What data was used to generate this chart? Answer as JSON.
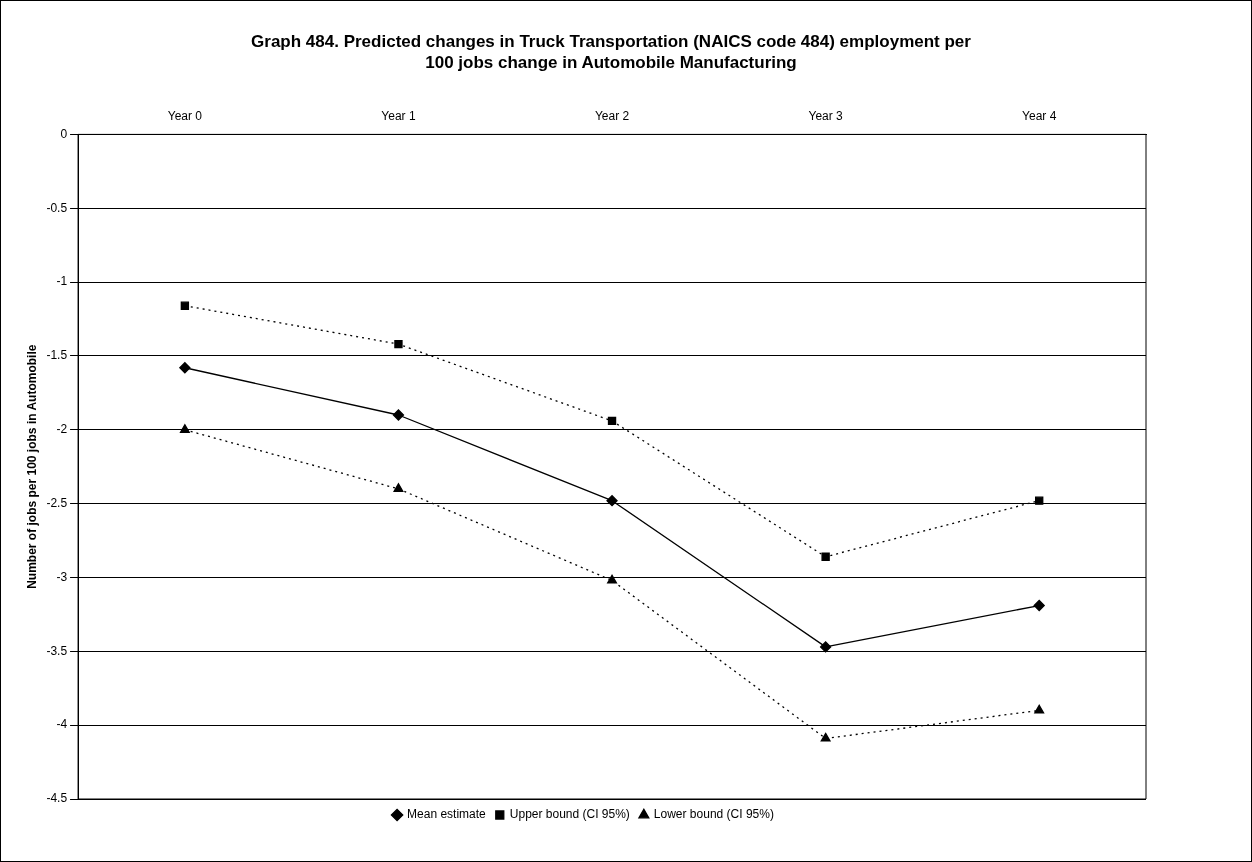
{
  "chart_data": {
    "type": "line",
    "title": "Graph 484.  Predicted changes in Truck Transportation (NAICS code 484) employment per 100 jobs change in Automobile Manufacturing",
    "ylabel": "Number of jobs per 100 jobs in Automobile",
    "categories": [
      "Year 0",
      "Year 1",
      "Year 2",
      "Year 3",
      "Year 4"
    ],
    "series": [
      {
        "name": "Mean estimate",
        "color": "#000000",
        "marker": "diamond",
        "line_style": "solid",
        "values": [
          -1.58,
          -1.9,
          -2.48,
          -3.47,
          -3.19
        ]
      },
      {
        "name": "Upper bound (CI 95%)",
        "color": "#000000",
        "marker": "square",
        "line_style": "dotted",
        "values": [
          -1.16,
          -1.42,
          -1.94,
          -2.86,
          -2.48
        ]
      },
      {
        "name": "Lower bound (CI 95%)",
        "color": "#000000",
        "marker": "triangle",
        "line_style": "dotted",
        "values": [
          -2.0,
          -2.4,
          -3.02,
          -4.09,
          -3.9
        ]
      }
    ],
    "ylim": [
      -4.5,
      0
    ],
    "yticks": [
      0,
      -0.5,
      -1,
      -1.5,
      -2,
      -2.5,
      -3,
      -3.5,
      -4,
      -4.5
    ],
    "grid": "y",
    "legend": "bottom"
  }
}
